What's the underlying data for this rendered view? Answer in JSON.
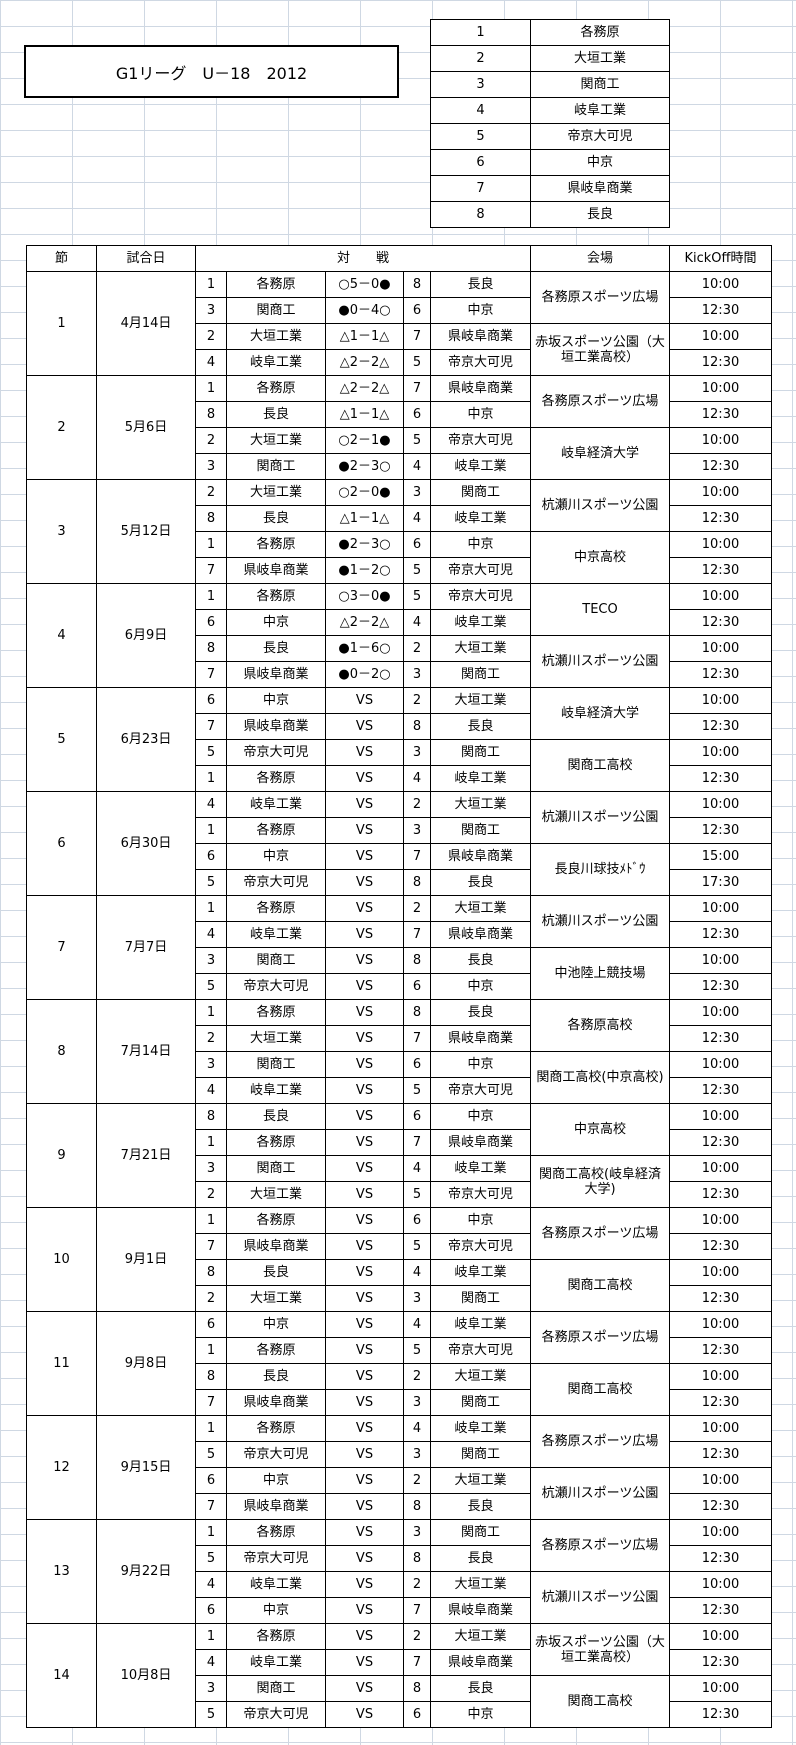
{
  "title": "G1リーグ　U－18　2012",
  "teams": [
    [
      1,
      "各務原"
    ],
    [
      2,
      "大垣工業"
    ],
    [
      3,
      "関商工"
    ],
    [
      4,
      "岐阜工業"
    ],
    [
      5,
      "帝京大可児"
    ],
    [
      6,
      "中京"
    ],
    [
      7,
      "県岐阜商業"
    ],
    [
      8,
      "長良"
    ]
  ],
  "header": [
    "節",
    "試合日",
    "対　　戦",
    "会場",
    "KickOff時間"
  ],
  "rounds": [
    {
      "round": 1,
      "date": "4月14日",
      "matches": [
        [
          1,
          "各務原",
          "○5－0●",
          8,
          "長良",
          "10:00"
        ],
        [
          3,
          "関商工",
          "●0－4○",
          6,
          "中京",
          "12:30"
        ],
        [
          2,
          "大垣工業",
          "△1－1△",
          7,
          "県岐阜商業",
          "10:00"
        ],
        [
          4,
          "岐阜工業",
          "△2－2△",
          5,
          "帝京大可児",
          "12:30"
        ]
      ],
      "venues": [
        "各務原スポーツ広場",
        "赤坂スポーツ公園（大垣工業高校）"
      ]
    },
    {
      "round": 2,
      "date": "5月6日",
      "matches": [
        [
          1,
          "各務原",
          "△2－2△",
          7,
          "県岐阜商業",
          "10:00"
        ],
        [
          8,
          "長良",
          "△1－1△",
          6,
          "中京",
          "12:30"
        ],
        [
          2,
          "大垣工業",
          "○2－1●",
          5,
          "帝京大可児",
          "10:00"
        ],
        [
          3,
          "関商工",
          "●2－3○",
          4,
          "岐阜工業",
          "12:30"
        ]
      ],
      "venues": [
        "各務原スポーツ広場",
        "岐阜経済大学"
      ]
    },
    {
      "round": 3,
      "date": "5月12日",
      "matches": [
        [
          2,
          "大垣工業",
          "○2－0●",
          3,
          "関商工",
          "10:00"
        ],
        [
          8,
          "長良",
          "△1－1△",
          4,
          "岐阜工業",
          "12:30"
        ],
        [
          1,
          "各務原",
          "●2－3○",
          6,
          "中京",
          "10:00"
        ],
        [
          7,
          "県岐阜商業",
          "●1－2○",
          5,
          "帝京大可児",
          "12:30"
        ]
      ],
      "venues": [
        "杭瀬川スポーツ公園",
        "中京高校"
      ]
    },
    {
      "round": 4,
      "date": "6月9日",
      "matches": [
        [
          1,
          "各務原",
          "○3－0●",
          5,
          "帝京大可児",
          "10:00"
        ],
        [
          6,
          "中京",
          "△2－2△",
          4,
          "岐阜工業",
          "12:30"
        ],
        [
          8,
          "長良",
          "●1－6○",
          2,
          "大垣工業",
          "10:00"
        ],
        [
          7,
          "県岐阜商業",
          "●0－2○",
          3,
          "関商工",
          "12:30"
        ]
      ],
      "venues": [
        "TECO",
        "杭瀬川スポーツ公園"
      ]
    },
    {
      "round": 5,
      "date": "6月23日",
      "matches": [
        [
          6,
          "中京",
          "VS",
          2,
          "大垣工業",
          "10:00"
        ],
        [
          7,
          "県岐阜商業",
          "VS",
          8,
          "長良",
          "12:30"
        ],
        [
          5,
          "帝京大可児",
          "VS",
          3,
          "関商工",
          "10:00"
        ],
        [
          1,
          "各務原",
          "VS",
          4,
          "岐阜工業",
          "12:30"
        ]
      ],
      "venues": [
        "岐阜経済大学",
        "関商工高校"
      ]
    },
    {
      "round": 6,
      "date": "6月30日",
      "matches": [
        [
          4,
          "岐阜工業",
          "VS",
          2,
          "大垣工業",
          "10:00"
        ],
        [
          1,
          "各務原",
          "VS",
          3,
          "関商工",
          "12:30"
        ],
        [
          6,
          "中京",
          "VS",
          7,
          "県岐阜商業",
          "15:00"
        ],
        [
          5,
          "帝京大可児",
          "VS",
          8,
          "長良",
          "17:30"
        ]
      ],
      "venues": [
        "杭瀬川スポーツ公園",
        "長良川球技ﾒﾄﾞｳ"
      ]
    },
    {
      "round": 7,
      "date": "7月7日",
      "matches": [
        [
          1,
          "各務原",
          "VS",
          2,
          "大垣工業",
          "10:00"
        ],
        [
          4,
          "岐阜工業",
          "VS",
          7,
          "県岐阜商業",
          "12:30"
        ],
        [
          3,
          "関商工",
          "VS",
          8,
          "長良",
          "10:00"
        ],
        [
          5,
          "帝京大可児",
          "VS",
          6,
          "中京",
          "12:30"
        ]
      ],
      "venues": [
        "杭瀬川スポーツ公園",
        "中池陸上競技場"
      ]
    },
    {
      "round": 8,
      "date": "7月14日",
      "matches": [
        [
          1,
          "各務原",
          "VS",
          8,
          "長良",
          "10:00"
        ],
        [
          2,
          "大垣工業",
          "VS",
          7,
          "県岐阜商業",
          "12:30"
        ],
        [
          3,
          "関商工",
          "VS",
          6,
          "中京",
          "10:00"
        ],
        [
          4,
          "岐阜工業",
          "VS",
          5,
          "帝京大可児",
          "12:30"
        ]
      ],
      "venues": [
        "各務原高校",
        "関商工高校(中京高校)"
      ]
    },
    {
      "round": 9,
      "date": "7月21日",
      "matches": [
        [
          8,
          "長良",
          "VS",
          6,
          "中京",
          "10:00"
        ],
        [
          1,
          "各務原",
          "VS",
          7,
          "県岐阜商業",
          "12:30"
        ],
        [
          3,
          "関商工",
          "VS",
          4,
          "岐阜工業",
          "10:00"
        ],
        [
          2,
          "大垣工業",
          "VS",
          5,
          "帝京大可児",
          "12:30"
        ]
      ],
      "venues": [
        "中京高校",
        "関商工高校(岐阜経済大学)"
      ]
    },
    {
      "round": 10,
      "date": "9月1日",
      "matches": [
        [
          1,
          "各務原",
          "VS",
          6,
          "中京",
          "10:00"
        ],
        [
          7,
          "県岐阜商業",
          "VS",
          5,
          "帝京大可児",
          "12:30"
        ],
        [
          8,
          "長良",
          "VS",
          4,
          "岐阜工業",
          "10:00"
        ],
        [
          2,
          "大垣工業",
          "VS",
          3,
          "関商工",
          "12:30"
        ]
      ],
      "venues": [
        "各務原スポーツ広場",
        "関商工高校"
      ]
    },
    {
      "round": 11,
      "date": "9月8日",
      "matches": [
        [
          6,
          "中京",
          "VS",
          4,
          "岐阜工業",
          "10:00"
        ],
        [
          1,
          "各務原",
          "VS",
          5,
          "帝京大可児",
          "12:30"
        ],
        [
          8,
          "長良",
          "VS",
          2,
          "大垣工業",
          "10:00"
        ],
        [
          7,
          "県岐阜商業",
          "VS",
          3,
          "関商工",
          "12:30"
        ]
      ],
      "venues": [
        "各務原スポーツ広場",
        "関商工高校"
      ]
    },
    {
      "round": 12,
      "date": "9月15日",
      "matches": [
        [
          1,
          "各務原",
          "VS",
          4,
          "岐阜工業",
          "10:00"
        ],
        [
          5,
          "帝京大可児",
          "VS",
          3,
          "関商工",
          "12:30"
        ],
        [
          6,
          "中京",
          "VS",
          2,
          "大垣工業",
          "10:00"
        ],
        [
          7,
          "県岐阜商業",
          "VS",
          8,
          "長良",
          "12:30"
        ]
      ],
      "venues": [
        "各務原スポーツ広場",
        "杭瀬川スポーツ公園"
      ]
    },
    {
      "round": 13,
      "date": "9月22日",
      "matches": [
        [
          1,
          "各務原",
          "VS",
          3,
          "関商工",
          "10:00"
        ],
        [
          5,
          "帝京大可児",
          "VS",
          8,
          "長良",
          "12:30"
        ],
        [
          4,
          "岐阜工業",
          "VS",
          2,
          "大垣工業",
          "10:00"
        ],
        [
          6,
          "中京",
          "VS",
          7,
          "県岐阜商業",
          "12:30"
        ]
      ],
      "venues": [
        "各務原スポーツ広場",
        "杭瀬川スポーツ公園"
      ]
    },
    {
      "round": 14,
      "date": "10月8日",
      "matches": [
        [
          1,
          "各務原",
          "VS",
          2,
          "大垣工業",
          "10:00"
        ],
        [
          4,
          "岐阜工業",
          "VS",
          7,
          "県岐阜商業",
          "12:30"
        ],
        [
          3,
          "関商工",
          "VS",
          8,
          "長良",
          "10:00"
        ],
        [
          5,
          "帝京大可児",
          "VS",
          6,
          "中京",
          "12:30"
        ]
      ],
      "venues": [
        "赤坂スポーツ公園（大垣工業高校）",
        "関商工高校"
      ]
    }
  ]
}
